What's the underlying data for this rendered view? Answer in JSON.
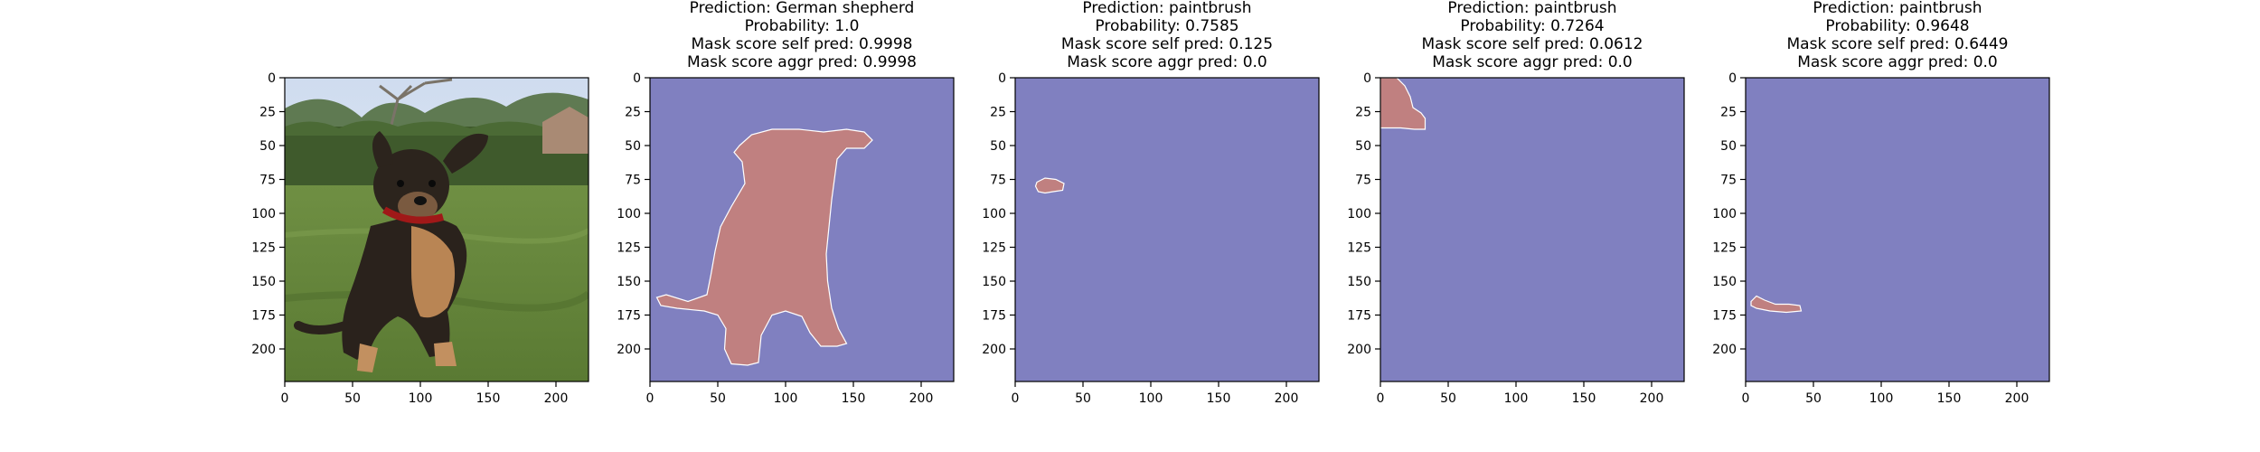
{
  "chart_data": [
    {
      "type": "image",
      "panel": "input",
      "content": "photo of a puppy sitting on grass",
      "title_lines": [],
      "xlim": [
        0,
        224
      ],
      "ylim": [
        224,
        0
      ],
      "xticks": [
        0,
        50,
        100,
        150,
        200
      ],
      "yticks": [
        0,
        25,
        50,
        75,
        100,
        125,
        150,
        175,
        200
      ]
    },
    {
      "type": "heatmap",
      "panel": "mask",
      "title_lines": [
        "Prediction: German shepherd",
        "Probability: 1.0",
        "Mask score self pred: 0.9998",
        "Mask score aggr pred: 0.9998"
      ],
      "xlim": [
        0,
        224
      ],
      "ylim": [
        224,
        0
      ],
      "xticks": [
        0,
        50,
        100,
        150,
        200
      ],
      "yticks": [
        0,
        25,
        50,
        75,
        100,
        125,
        150,
        175,
        200
      ],
      "mask_region": [
        [
          66,
          50
        ],
        [
          75,
          42
        ],
        [
          90,
          38
        ],
        [
          110,
          38
        ],
        [
          128,
          40
        ],
        [
          145,
          38
        ],
        [
          158,
          40
        ],
        [
          164,
          46
        ],
        [
          158,
          52
        ],
        [
          145,
          52
        ],
        [
          138,
          60
        ],
        [
          136,
          75
        ],
        [
          134,
          90
        ],
        [
          132,
          110
        ],
        [
          130,
          130
        ],
        [
          131,
          150
        ],
        [
          134,
          170
        ],
        [
          139,
          185
        ],
        [
          145,
          196
        ],
        [
          138,
          198
        ],
        [
          126,
          198
        ],
        [
          118,
          188
        ],
        [
          112,
          176
        ],
        [
          100,
          172
        ],
        [
          90,
          175
        ],
        [
          82,
          190
        ],
        [
          80,
          210
        ],
        [
          72,
          212
        ],
        [
          60,
          211
        ],
        [
          55,
          200
        ],
        [
          56,
          185
        ],
        [
          50,
          175
        ],
        [
          40,
          172
        ],
        [
          20,
          170
        ],
        [
          8,
          168
        ],
        [
          5,
          162
        ],
        [
          12,
          160
        ],
        [
          28,
          165
        ],
        [
          42,
          160
        ],
        [
          45,
          145
        ],
        [
          48,
          128
        ],
        [
          52,
          110
        ],
        [
          60,
          95
        ],
        [
          70,
          78
        ],
        [
          68,
          62
        ],
        [
          62,
          55
        ]
      ]
    },
    {
      "type": "heatmap",
      "panel": "mask",
      "title_lines": [
        "Prediction: paintbrush",
        "Probability: 0.7585",
        "Mask score self pred: 0.125",
        "Mask score aggr pred: 0.0"
      ],
      "xlim": [
        0,
        224
      ],
      "ylim": [
        224,
        0
      ],
      "xticks": [
        0,
        50,
        100,
        150,
        200
      ],
      "yticks": [
        0,
        25,
        50,
        75,
        100,
        125,
        150,
        175,
        200
      ],
      "mask_region": [
        [
          16,
          77
        ],
        [
          22,
          74
        ],
        [
          30,
          75
        ],
        [
          36,
          78
        ],
        [
          35,
          83
        ],
        [
          28,
          84
        ],
        [
          22,
          85
        ],
        [
          17,
          84
        ],
        [
          15,
          80
        ]
      ]
    },
    {
      "type": "heatmap",
      "panel": "mask",
      "title_lines": [
        "Prediction: paintbrush",
        "Probability: 0.7264",
        "Mask score self pred: 0.0612",
        "Mask score aggr pred: 0.0"
      ],
      "xlim": [
        0,
        224
      ],
      "ylim": [
        224,
        0
      ],
      "xticks": [
        0,
        50,
        100,
        150,
        200
      ],
      "yticks": [
        0,
        25,
        50,
        75,
        100,
        125,
        150,
        175,
        200
      ],
      "mask_region": [
        [
          0,
          0
        ],
        [
          12,
          0
        ],
        [
          18,
          6
        ],
        [
          22,
          14
        ],
        [
          24,
          22
        ],
        [
          30,
          26
        ],
        [
          33,
          30
        ],
        [
          33,
          38
        ],
        [
          25,
          38
        ],
        [
          15,
          37
        ],
        [
          0,
          37
        ]
      ]
    },
    {
      "type": "heatmap",
      "panel": "mask",
      "title_lines": [
        "Prediction: paintbrush",
        "Probability: 0.9648",
        "Mask score self pred: 0.6449",
        "Mask score aggr pred: 0.0"
      ],
      "xlim": [
        0,
        224
      ],
      "ylim": [
        224,
        0
      ],
      "xticks": [
        0,
        50,
        100,
        150,
        200
      ],
      "yticks": [
        0,
        25,
        50,
        75,
        100,
        125,
        150,
        175,
        200
      ],
      "mask_region": [
        [
          4,
          165
        ],
        [
          8,
          161
        ],
        [
          14,
          164
        ],
        [
          22,
          167
        ],
        [
          32,
          167
        ],
        [
          40,
          168
        ],
        [
          41,
          172
        ],
        [
          30,
          173
        ],
        [
          18,
          172
        ],
        [
          8,
          170
        ],
        [
          4,
          168
        ]
      ]
    }
  ]
}
